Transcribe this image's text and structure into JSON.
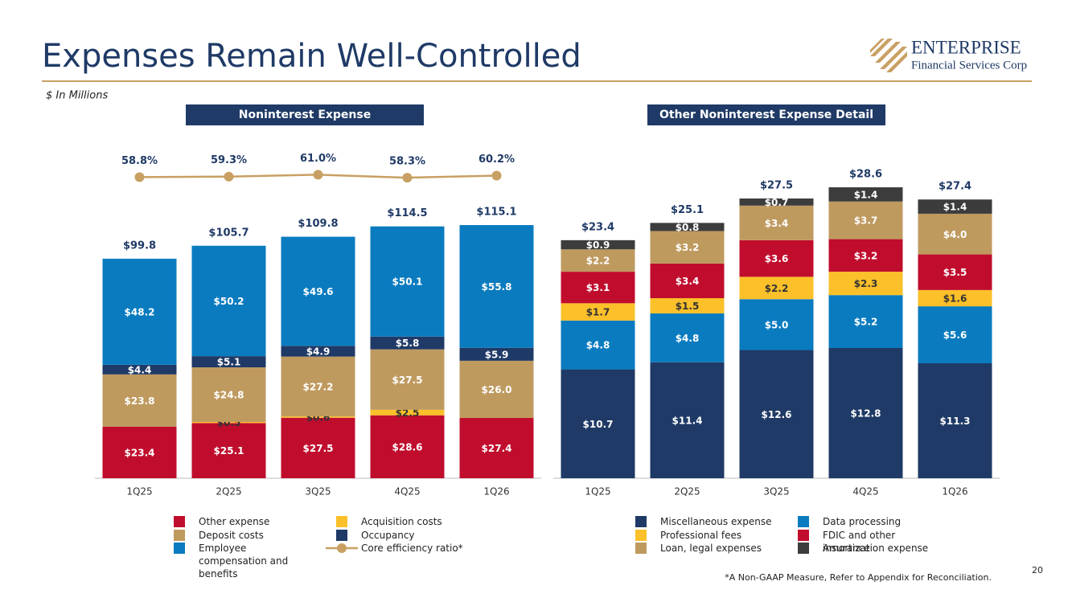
{
  "header": {
    "title": "Expenses Remain Well-Controlled",
    "subtitle": "$ In Millions",
    "logo": {
      "name": "ENTERPRISE",
      "tagline": "Financial Services Corp"
    }
  },
  "chart_data": [
    {
      "type": "bar",
      "stacked": true,
      "title": "Noninterest Expense",
      "categories": [
        "1Q25",
        "2Q25",
        "3Q25",
        "4Q25",
        "1Q26"
      ],
      "ylim": [
        0,
        148
      ],
      "y2lim": [
        30,
        110
      ],
      "series": [
        {
          "name": "Other expense",
          "color": "#c00d2d",
          "values": [
            23.4,
            25.1,
            27.5,
            28.6,
            27.4
          ],
          "value_labels": [
            "$23.4",
            "$25.1",
            "$27.5",
            "$28.6",
            "$27.4"
          ]
        },
        {
          "name": "Acquisition costs",
          "color": "#fbc02a",
          "values": [
            null,
            0.5,
            0.6,
            2.5,
            null
          ],
          "value_labels": [
            null,
            "$0.5",
            "$0.6",
            "$2.5",
            null
          ]
        },
        {
          "name": "Deposit costs",
          "color": "#bf9a5f",
          "values": [
            23.8,
            24.8,
            27.2,
            27.5,
            26.0
          ],
          "value_labels": [
            "$23.8",
            "$24.8",
            "$27.2",
            "$27.5",
            "$26.0"
          ]
        },
        {
          "name": "Occupancy",
          "color": "#1f3a66",
          "values": [
            4.4,
            5.1,
            4.9,
            5.8,
            5.9
          ],
          "value_labels": [
            "$4.4",
            "$5.1",
            "$4.9",
            "$5.8",
            "$5.9"
          ]
        },
        {
          "name": "Employee compensation and benefits",
          "color": "#0a7bbf",
          "values": [
            48.2,
            50.2,
            49.6,
            50.1,
            55.8
          ],
          "value_labels": [
            "$48.2",
            "$50.2",
            "$49.6",
            "$50.1",
            "$55.8"
          ]
        },
        {
          "name": "Core efficiency ratio*",
          "type": "line",
          "axis": "y2",
          "color": "#c8a063",
          "values": [
            58.8,
            59.3,
            61.0,
            58.3,
            60.2
          ],
          "value_labels": [
            "58.8%",
            "59.3%",
            "61.0%",
            "58.3%",
            "60.2%"
          ]
        }
      ],
      "totals": [
        99.8,
        105.7,
        109.8,
        114.5,
        115.1
      ],
      "total_labels": [
        "$99.8",
        "$105.7",
        "$109.8",
        "$114.5",
        "$115.1"
      ]
    },
    {
      "type": "bar",
      "stacked": true,
      "title": "Other Noninterest Expense Detail",
      "categories": [
        "1Q25",
        "2Q25",
        "3Q25",
        "4Q25",
        "1Q26"
      ],
      "ylim": [
        0,
        32
      ],
      "series": [
        {
          "name": "Miscellaneous expense",
          "color": "#1f3a66",
          "values": [
            10.7,
            11.4,
            12.6,
            12.8,
            11.3
          ],
          "value_labels": [
            "$10.7",
            "$11.4",
            "$12.6",
            "$12.8",
            "$11.3"
          ]
        },
        {
          "name": "Data processing",
          "color": "#0a7bbf",
          "values": [
            4.8,
            4.8,
            5.0,
            5.2,
            5.6
          ],
          "value_labels": [
            "$4.8",
            "$4.8",
            "$5.0",
            "$5.2",
            "$5.6"
          ]
        },
        {
          "name": "Professional fees",
          "color": "#fbc02a",
          "values": [
            1.7,
            1.5,
            2.2,
            2.3,
            1.6
          ],
          "value_labels": [
            "$1.7",
            "$1.5",
            "$2.2",
            "$2.3",
            "$1.6"
          ]
        },
        {
          "name": "FDIC and other insurance",
          "color": "#c00d2d",
          "values": [
            3.1,
            3.4,
            3.6,
            3.2,
            3.5
          ],
          "value_labels": [
            "$3.1",
            "$3.4",
            "$3.6",
            "$3.2",
            "$3.5"
          ]
        },
        {
          "name": "Loan, legal expenses",
          "color": "#bf9a5f",
          "values": [
            2.2,
            3.2,
            3.4,
            3.7,
            4.0
          ],
          "value_labels": [
            "$2.2",
            "$3.2",
            "$3.4",
            "$3.7",
            "$4.0"
          ]
        },
        {
          "name": "Amortization expense",
          "color": "#3c3c3c",
          "values": [
            0.9,
            0.8,
            0.7,
            1.4,
            1.4
          ],
          "value_labels": [
            "$0.9",
            "$0.8",
            "$0.7",
            "$1.4",
            "$1.4"
          ]
        }
      ],
      "totals": [
        23.4,
        25.1,
        27.5,
        28.6,
        27.4
      ],
      "total_labels": [
        "$23.4",
        "$25.1",
        "$27.5",
        "$28.6",
        "$27.4"
      ]
    }
  ],
  "footnote": "*A Non-GAAP Measure, Refer to Appendix for Reconciliation.",
  "page_number": "20"
}
